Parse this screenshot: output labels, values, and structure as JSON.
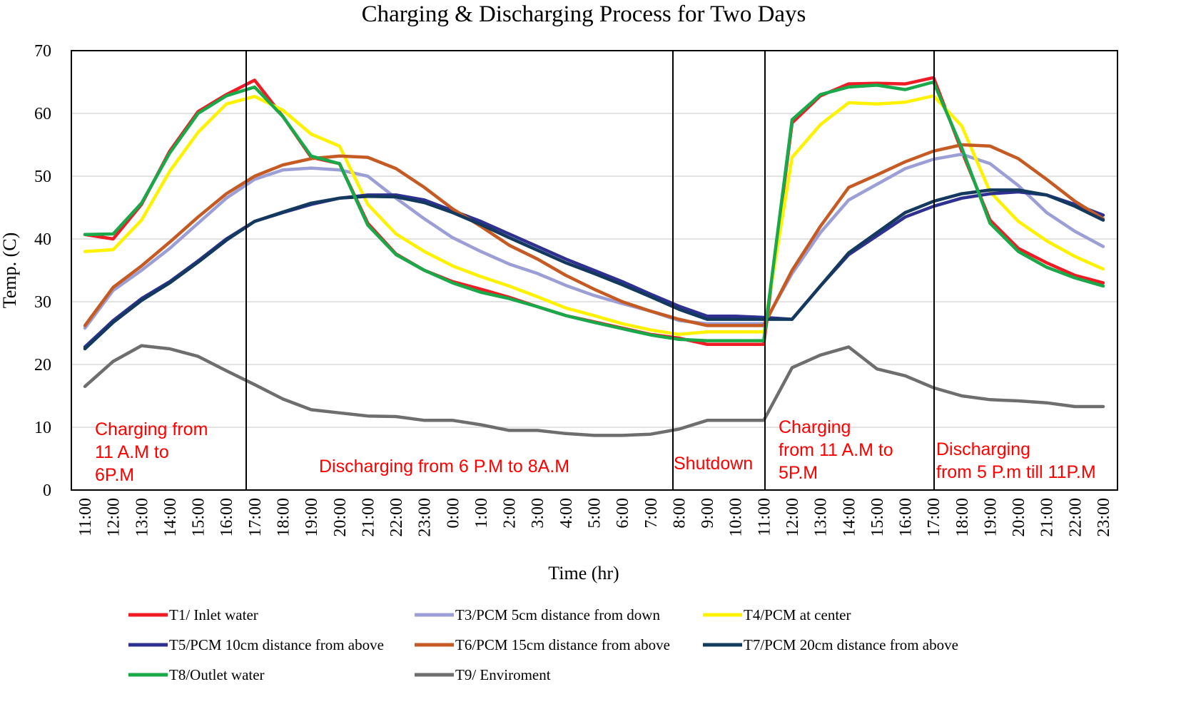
{
  "chart_data": {
    "type": "line",
    "title": "Charging & Discharging Process for Two Days",
    "xlabel": "Time (hr)",
    "ylabel": "Temp. (C)",
    "ylim": [
      0,
      70
    ],
    "yticks": [
      0,
      10,
      20,
      30,
      40,
      50,
      60,
      70
    ],
    "grid": true,
    "categories": [
      "11:00",
      "12:00",
      "13:00",
      "14:00",
      "15:00",
      "16:00",
      "17:00",
      "18:00",
      "19:00",
      "20:00",
      "21:00",
      "22:00",
      "23:00",
      "0:00",
      "1:00",
      "2:00",
      "3:00",
      "4:00",
      "5:00",
      "6:00",
      "7:00",
      "8:00",
      "9:00",
      "10:00",
      "11:00",
      "12:00",
      "13:00",
      "14:00",
      "15:00",
      "16:00",
      "17:00",
      "18:00",
      "19:00",
      "20:00",
      "21:00",
      "22:00",
      "23:00"
    ],
    "series": [
      {
        "name": "T1/ Inlet water",
        "color": "#ee1c25",
        "values": [
          40.7,
          40,
          45.5,
          54,
          60.3,
          63,
          65.3,
          59.5,
          53,
          52,
          42.5,
          37.6,
          35,
          33.2,
          32,
          30.7,
          29.2,
          27.8,
          26.8,
          25.8,
          24.8,
          24.2,
          23.2,
          23.2,
          23.2,
          58.5,
          62.8,
          64.7,
          64.8,
          64.7,
          65.7,
          54,
          43,
          38.5,
          36.2,
          34.2,
          33
        ]
      },
      {
        "name": "T3/PCM 5cm distance from down",
        "color": "#9c9fd6",
        "values": [
          25.8,
          31.8,
          35,
          38.5,
          42.5,
          46.5,
          49.5,
          51,
          51.3,
          51,
          50,
          46.5,
          43.2,
          40.2,
          38,
          36,
          34.5,
          32.6,
          31,
          29.7,
          28.5,
          27,
          26.5,
          26.5,
          26.5,
          34.5,
          41,
          46.2,
          48.7,
          51.2,
          52.7,
          53.5,
          52,
          48.5,
          44.2,
          41.2,
          38.8
        ]
      },
      {
        "name": "T4/PCM at center",
        "color": "#fff200",
        "values": [
          38,
          38.3,
          43,
          50.8,
          57,
          61.5,
          62.7,
          60.5,
          56.7,
          54.8,
          45.5,
          40.8,
          38,
          35.7,
          34,
          32.5,
          30.8,
          29,
          27.8,
          26.5,
          25.5,
          24.8,
          25.2,
          25.2,
          25.2,
          53,
          58.2,
          61.7,
          61.5,
          61.8,
          62.8,
          58,
          47.5,
          42.8,
          39.7,
          37.2,
          35.2
        ]
      },
      {
        "name": "T5/PCM 10cm distance from above",
        "color": "#2e3192",
        "values": [
          22.8,
          27,
          30.5,
          33.2,
          36.5,
          40,
          42.8,
          44.2,
          45.5,
          46.5,
          47,
          47,
          46.2,
          44.5,
          42.8,
          40.8,
          38.8,
          36.8,
          35,
          33.2,
          31.2,
          29.3,
          27.7,
          27.7,
          27.5,
          27.2,
          32.5,
          37.5,
          40.5,
          43.5,
          45.2,
          46.5,
          47.2,
          47.5,
          47,
          45.5,
          43.8
        ]
      },
      {
        "name": "T6/PCM 15cm distance from above",
        "color": "#c55a22",
        "values": [
          26.2,
          32.3,
          35.7,
          39.5,
          43.5,
          47.2,
          50,
          51.8,
          52.8,
          53.2,
          53,
          51.2,
          48.2,
          44.8,
          42,
          39,
          36.8,
          34.2,
          32,
          30,
          28.5,
          27.2,
          26.2,
          26.2,
          26.2,
          35,
          42,
          48.2,
          50.2,
          52.3,
          54,
          55,
          54.8,
          52.8,
          49.5,
          46,
          43.2
        ]
      },
      {
        "name": "T7/PCM 20cm distance from above",
        "color": "#133a5e",
        "values": [
          22.5,
          26.7,
          30.2,
          33,
          36.3,
          39.8,
          42.8,
          44.3,
          45.7,
          46.5,
          46.8,
          46.7,
          45.8,
          44.2,
          42.3,
          40.2,
          38.2,
          36.2,
          34.5,
          32.7,
          30.8,
          28.8,
          27.2,
          27.2,
          27.2,
          27.2,
          32.5,
          37.8,
          41,
          44.2,
          46,
          47.2,
          47.8,
          47.8,
          47,
          45.2,
          43
        ]
      },
      {
        "name": "T8/Outlet water",
        "color": "#1aa94a",
        "values": [
          40.7,
          40.8,
          45.7,
          53.7,
          60,
          62.8,
          64.2,
          59.5,
          53.2,
          52,
          42.2,
          37.5,
          35,
          33,
          31.5,
          30.5,
          29.2,
          27.8,
          26.7,
          25.7,
          24.7,
          24,
          23.8,
          23.8,
          23.8,
          59,
          63,
          64.2,
          64.5,
          63.8,
          65,
          54.5,
          42.5,
          38,
          35.5,
          33.8,
          32.5
        ]
      },
      {
        "name": "T9/ Enviroment",
        "color": "#6e6e6e",
        "values": [
          16.5,
          20.5,
          23,
          22.5,
          21.3,
          19,
          16.8,
          14.5,
          12.8,
          12.3,
          11.8,
          11.7,
          11.1,
          11.1,
          10.4,
          9.5,
          9.5,
          9,
          8.7,
          8.7,
          8.9,
          9.7,
          11.1,
          11.1,
          11.1,
          19.5,
          21.5,
          22.8,
          19.3,
          18.2,
          16.3,
          15,
          14.4,
          14.2,
          13.9,
          13.3,
          13.3
        ]
      }
    ],
    "phase_dividers_at_index": [
      6,
      21,
      24,
      30
    ],
    "annotations": [
      {
        "lines": [
          "Charging from",
          "11 A.M to",
          "6P.M"
        ],
        "phase": "charging-day-1"
      },
      {
        "lines": [
          "Discharging from 6 P.M to 8A.M"
        ],
        "phase": "discharging-night-1"
      },
      {
        "lines": [
          "Shutdown"
        ],
        "phase": "shutdown"
      },
      {
        "lines": [
          "Charging",
          "from 11 A.M to",
          "5P.M"
        ],
        "phase": "charging-day-2"
      },
      {
        "lines": [
          "Discharging",
          "from 5 P.m till 11P.M"
        ],
        "phase": "discharging-night-2"
      }
    ],
    "legend_position": "bottom"
  }
}
